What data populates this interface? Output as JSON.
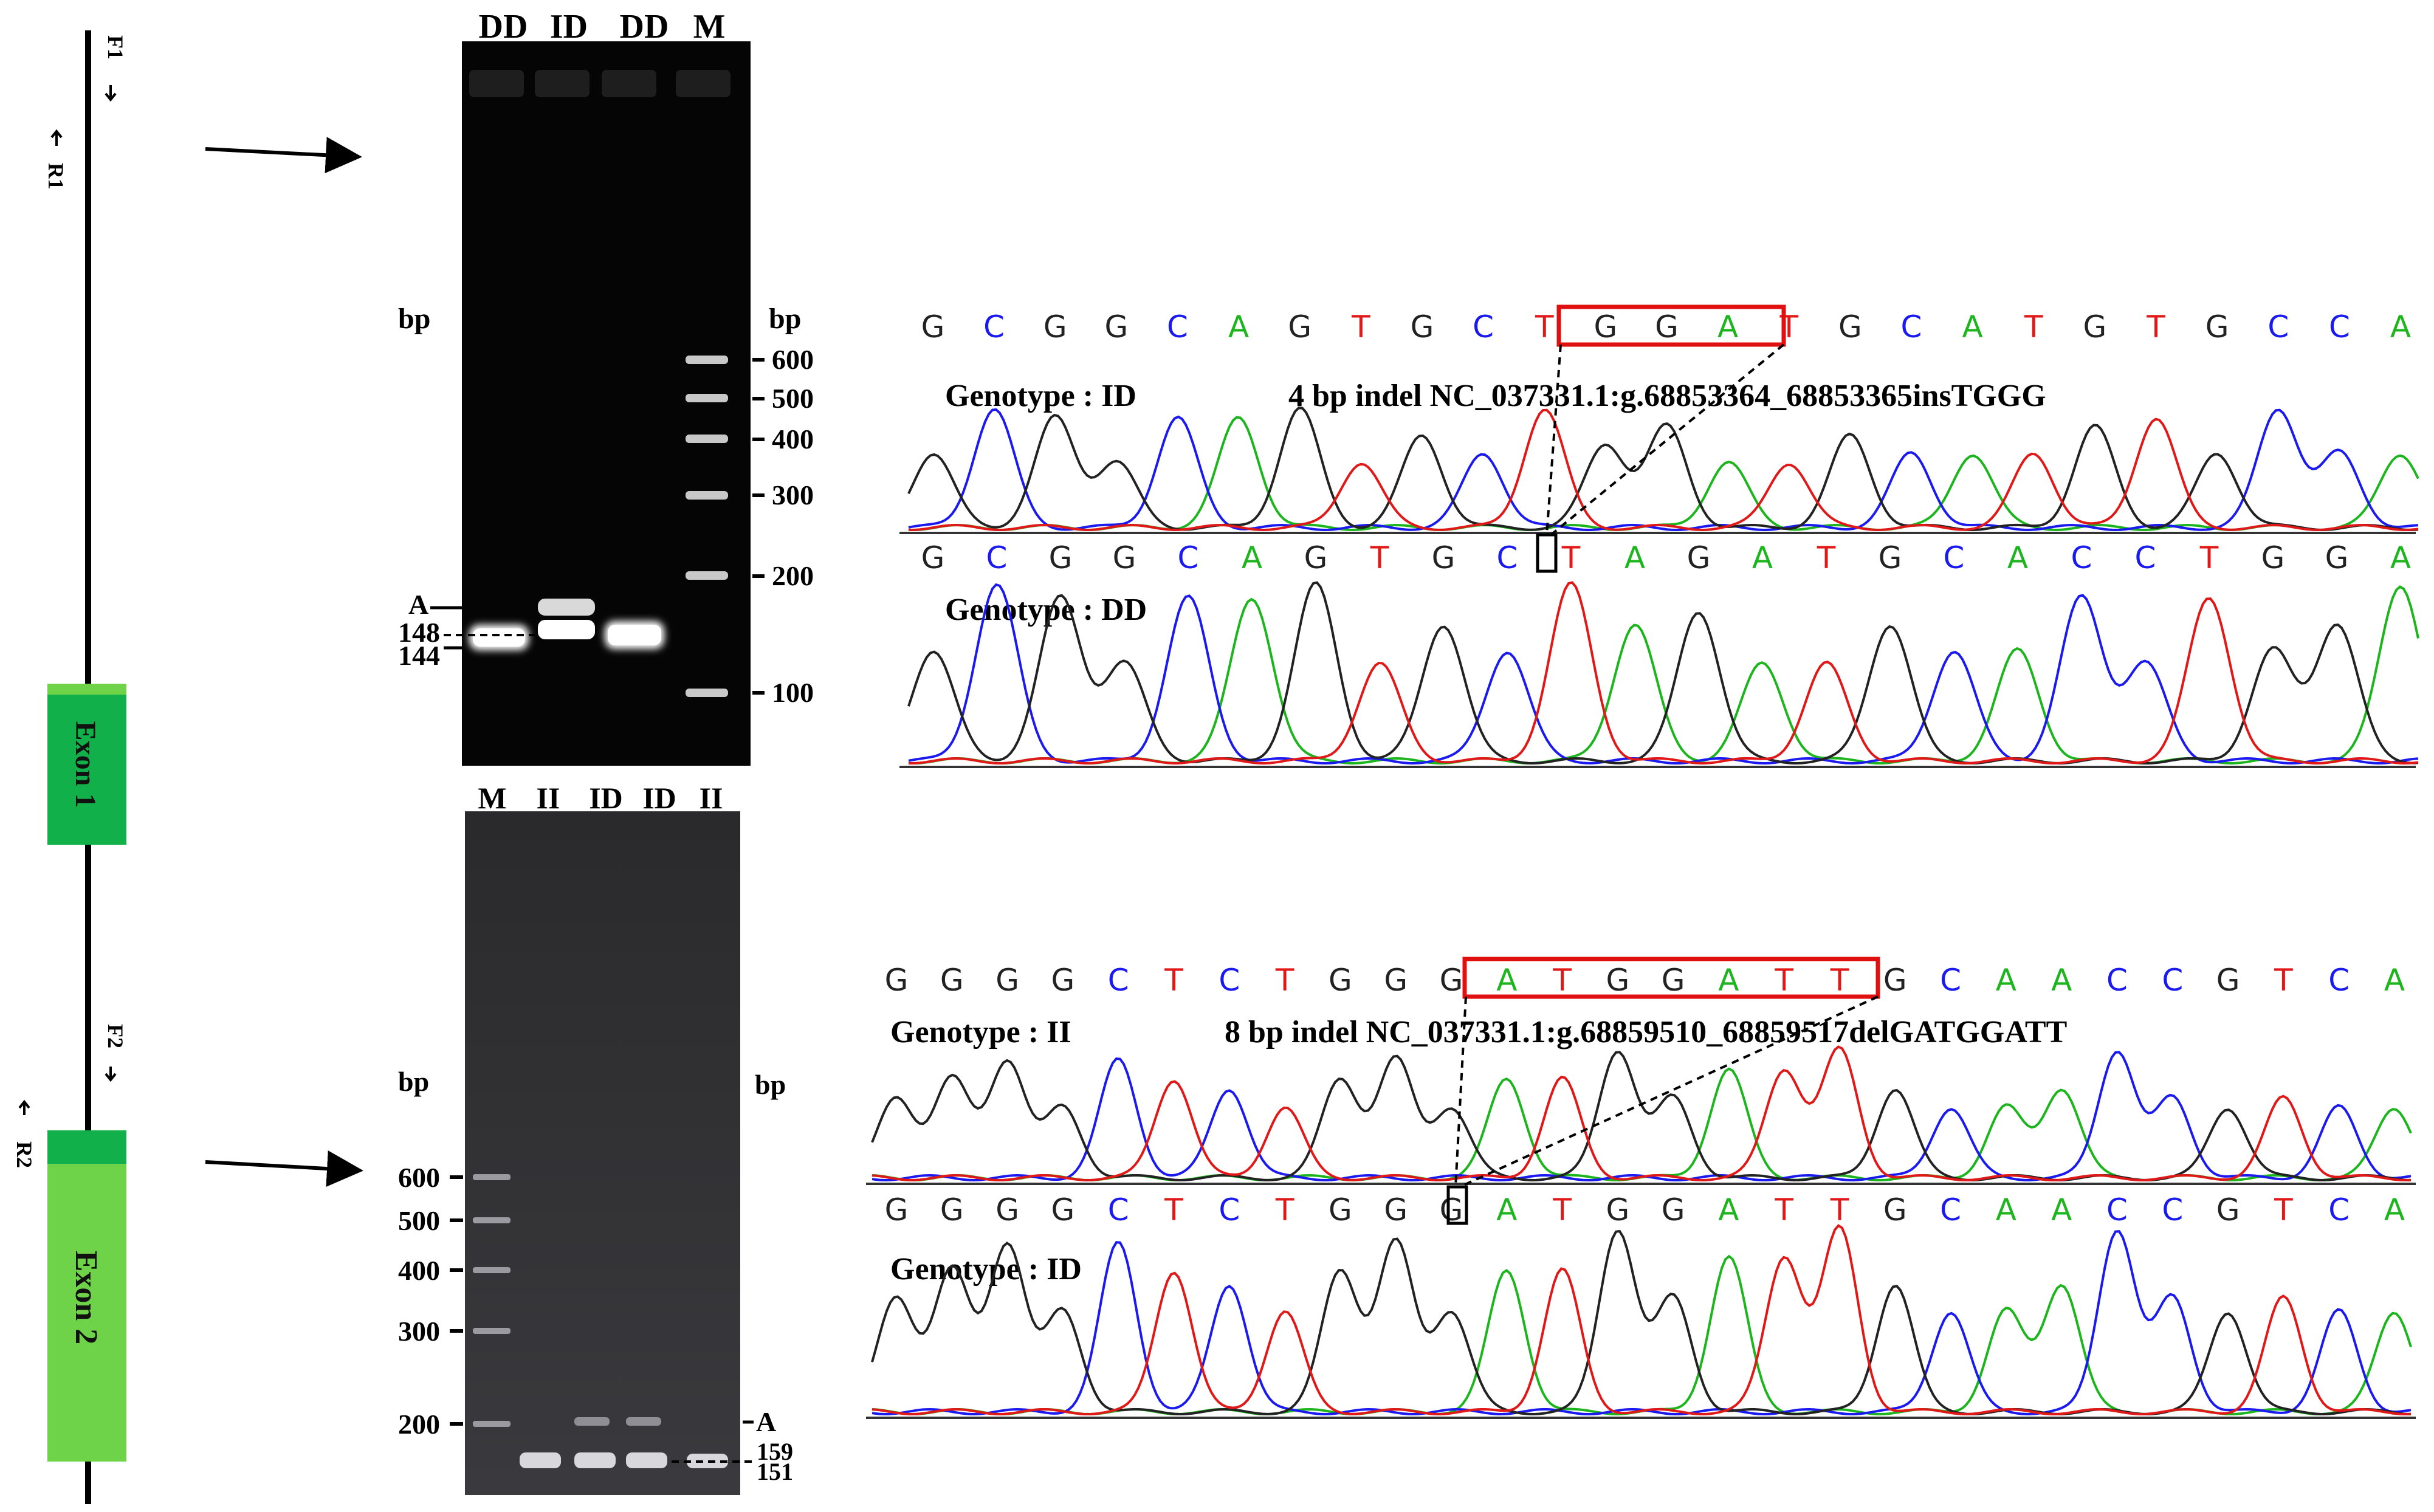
{
  "gene_map": {
    "primers": [
      "F1",
      "R1",
      "F2",
      "R2"
    ],
    "exons": [
      "Exon 1",
      "Exon 2"
    ]
  },
  "gel_top": {
    "lanes": [
      "DD",
      "ID",
      "DD",
      "M"
    ],
    "unit_left": "bp",
    "unit_right": "bp",
    "ladder": [
      "600",
      "500",
      "400",
      "300",
      "200",
      "100"
    ],
    "band_labels": [
      "A",
      "148",
      "144"
    ]
  },
  "gel_bottom": {
    "lanes": [
      "M",
      "II",
      "ID",
      "ID",
      "II"
    ],
    "unit_left": "bp",
    "unit_right": "bp",
    "ladder": [
      "600",
      "500",
      "400",
      "300",
      "200"
    ],
    "band_labels": [
      "A",
      "159",
      "151"
    ]
  },
  "chrom_top": {
    "seq1": [
      "G",
      "C",
      "G",
      "G",
      "C",
      "A",
      "G",
      "T",
      "G",
      "C",
      "T",
      "G",
      "G",
      "A",
      "T",
      "G",
      "C",
      "A",
      "T",
      "G",
      "T",
      "G",
      "C",
      "C",
      "A"
    ],
    "label1": "Genotype : ID",
    "indel": "4 bp indel NC_037331.1:g.68853364_68853365insTGGG",
    "seq2": [
      "G",
      "C",
      "G",
      "G",
      "C",
      "A",
      "G",
      "T",
      "G",
      "C",
      "T",
      "A",
      "G",
      "A",
      "T",
      "G",
      "C",
      "A",
      "C",
      "C",
      "T",
      "G",
      "G",
      "A"
    ],
    "label2": "Genotype : DD"
  },
  "chrom_bottom": {
    "seq1": [
      "G",
      "G",
      "G",
      "G",
      "C",
      "T",
      "C",
      "T",
      "G",
      "G",
      "G",
      "A",
      "T",
      "G",
      "G",
      "A",
      "T",
      "T",
      "G",
      "C",
      "A",
      "A",
      "C",
      "C",
      "G",
      "T",
      "C",
      "A"
    ],
    "label1": "Genotype : II",
    "indel": "8 bp indel NC_037331.1:g.68859510_68859517delGATGGATT",
    "seq2": [
      "G",
      "G",
      "G",
      "G",
      "C",
      "T",
      "C",
      "T",
      "G",
      "G",
      "G",
      "A",
      "T",
      "G",
      "G",
      "A",
      "T",
      "T",
      "G",
      "C",
      "A",
      "A",
      "C",
      "C",
      "G",
      "T",
      "C",
      "A"
    ],
    "label2": "Genotype : ID"
  },
  "colors": {
    "A": "#1db51d",
    "C": "#1a1af0",
    "G": "#222222",
    "T": "#e01818",
    "exon1": "#12b04a",
    "exon2": "#6fd34a",
    "box": "#e01010"
  }
}
